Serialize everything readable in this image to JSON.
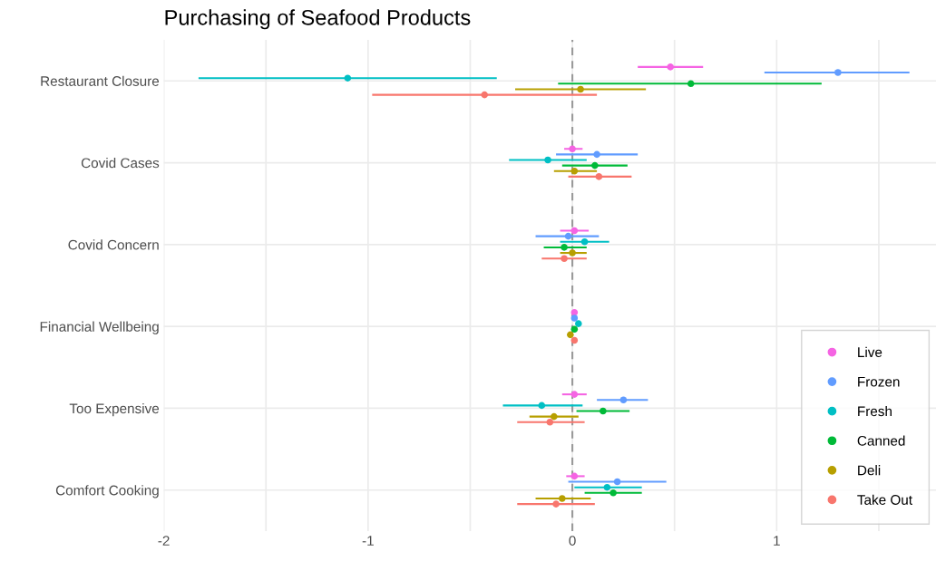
{
  "chart_data": {
    "type": "scatter",
    "title": "Purchasing of Seafood Products",
    "orientation": "horizontal",
    "categories": [
      "Restaurant Closure",
      "Covid Cases",
      "Covid Concern",
      "Financial Wellbeing",
      "Too Expensive",
      "Comfort Cooking"
    ],
    "series": [
      {
        "name": "Live",
        "color": "#f564e3",
        "values": [
          0.48,
          0.0,
          0.01,
          0.01,
          0.01,
          0.01
        ],
        "errors": [
          [
            0.32,
            0.64
          ],
          [
            -0.04,
            0.05
          ],
          [
            -0.06,
            0.08
          ],
          null,
          [
            -0.05,
            0.07
          ],
          [
            -0.03,
            0.06
          ]
        ]
      },
      {
        "name": "Frozen",
        "color": "#619cff",
        "values": [
          1.3,
          0.12,
          -0.02,
          0.01,
          0.25,
          0.22
        ],
        "errors": [
          [
            0.94,
            1.65
          ],
          [
            -0.08,
            0.32
          ],
          [
            -0.18,
            0.13
          ],
          null,
          [
            0.12,
            0.37
          ],
          [
            -0.02,
            0.46
          ]
        ]
      },
      {
        "name": "Fresh",
        "color": "#00bfc4",
        "values": [
          -1.1,
          -0.12,
          0.06,
          0.03,
          -0.15,
          0.17
        ],
        "errors": [
          [
            -1.83,
            -0.37
          ],
          [
            -0.31,
            0.07
          ],
          [
            -0.06,
            0.18
          ],
          null,
          [
            -0.34,
            0.05
          ],
          [
            0.01,
            0.34
          ]
        ]
      },
      {
        "name": "Canned",
        "color": "#00ba38",
        "values": [
          0.58,
          0.11,
          -0.04,
          0.01,
          0.15,
          0.2
        ],
        "errors": [
          [
            -0.07,
            1.22
          ],
          [
            -0.05,
            0.27
          ],
          [
            -0.14,
            0.07
          ],
          null,
          [
            0.02,
            0.28
          ],
          [
            0.06,
            0.34
          ]
        ]
      },
      {
        "name": "Deli",
        "color": "#b79f00",
        "values": [
          0.04,
          0.01,
          0.0,
          -0.01,
          -0.09,
          -0.05
        ],
        "errors": [
          [
            -0.28,
            0.36
          ],
          [
            -0.09,
            0.12
          ],
          [
            -0.06,
            0.07
          ],
          null,
          [
            -0.21,
            0.03
          ],
          [
            -0.18,
            0.09
          ]
        ]
      },
      {
        "name": "Take Out",
        "color": "#f8766d",
        "values": [
          -0.43,
          0.13,
          -0.04,
          0.01,
          -0.11,
          -0.08
        ],
        "errors": [
          [
            -0.98,
            0.12
          ],
          [
            -0.02,
            0.29
          ],
          [
            -0.15,
            0.07
          ],
          null,
          [
            -0.27,
            0.06
          ],
          [
            -0.27,
            0.11
          ]
        ]
      }
    ],
    "xlim": [
      -2,
      1.78
    ],
    "xticks": [
      -2,
      {
        "value": -1.5,
        "label": null
      },
      -1,
      {
        "value": -0.5,
        "label": null
      },
      0,
      {
        "value": 0.5,
        "label": null
      },
      1,
      {
        "value": 1.5,
        "label": null
      }
    ],
    "ref_lines": [
      {
        "axis": "x",
        "value": 0,
        "color": "#999999",
        "line_style": "dashed"
      }
    ],
    "grid": true,
    "legend": "bottom right",
    "marker": "circle"
  }
}
